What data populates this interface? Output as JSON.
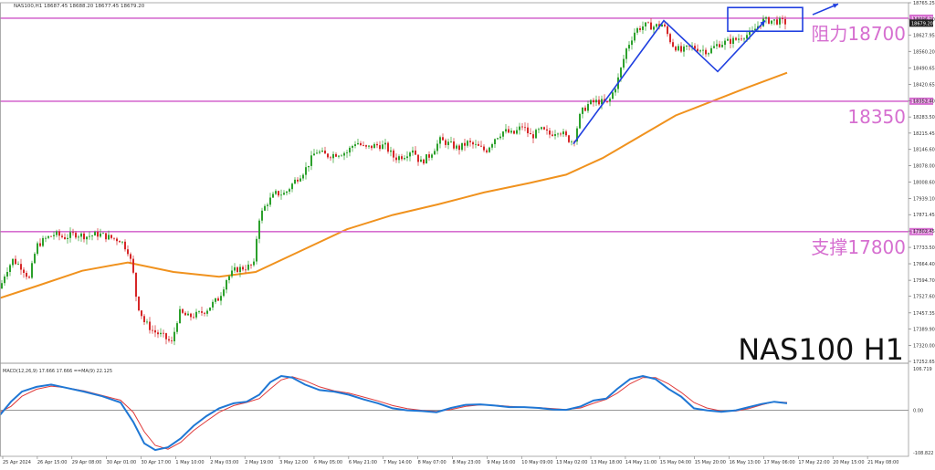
{
  "chart_data": {
    "type": "candlestick",
    "symbol_info": "NAS100,H1  18687.45 18688.20 18677.45 18679.20",
    "big_title": "NAS100 H1",
    "colors": {
      "bull": "#2ca02c",
      "bear": "#d62728",
      "ma": "#f0921e",
      "level": "#d66fd0",
      "trend": "#1f3fe0",
      "macd": "#1f77d4",
      "signal": "#e03a3a",
      "grid": "#d8d8d8",
      "text": "#333333"
    },
    "price_axis": {
      "min": 17252.65,
      "max": 18765.25,
      "ticks": [
        "18765.25",
        "18696.20",
        "18627.95",
        "18560.20",
        "18490.65",
        "18420.65",
        "18352.40",
        "18283.50",
        "18215.45",
        "18146.60",
        "18078.00",
        "18008.60",
        "17939.10",
        "17871.45",
        "17802.45",
        "17733.50",
        "17664.40",
        "17594.70",
        "17527.60",
        "17457.35",
        "17389.90",
        "17320.00",
        "17252.65"
      ],
      "current_price": "18679.20"
    },
    "levels": [
      {
        "price": 18700,
        "label": "阻力18700",
        "tag": "18700.00"
      },
      {
        "price": 18350,
        "label": "18350",
        "tag": "18350.00"
      },
      {
        "price": 17800,
        "label": "支撑17800",
        "tag": "17800.00"
      }
    ],
    "time_labels": [
      "25 Apr 2024",
      "26 Apr 15:00",
      "29 Apr 08:00",
      "30 Apr 01:00",
      "30 Apr 17:00",
      "1 May 10:00",
      "2 May 03:00",
      "2 May 19:00",
      "3 May 12:00",
      "6 May 05:00",
      "6 May 21:00",
      "7 May 14:00",
      "8 May 07:00",
      "8 May 23:00",
      "9 May 16:00",
      "10 May 09:00",
      "13 May 02:00",
      "13 May 18:00",
      "14 May 11:00",
      "15 May 04:00",
      "15 May 20:00",
      "16 May 13:00",
      "17 May 06:00",
      "17 May 22:00",
      "20 May 15:00",
      "21 May 08:00"
    ],
    "price_path": [
      [
        0,
        17560
      ],
      [
        6,
        17630
      ],
      [
        14,
        17680
      ],
      [
        24,
        17650
      ],
      [
        32,
        17600
      ],
      [
        40,
        17740
      ],
      [
        50,
        17770
      ],
      [
        60,
        17790
      ],
      [
        70,
        17775
      ],
      [
        82,
        17790
      ],
      [
        95,
        17780
      ],
      [
        108,
        17790
      ],
      [
        120,
        17775
      ],
      [
        132,
        17765
      ],
      [
        140,
        17720
      ],
      [
        145,
        17650
      ],
      [
        150,
        17500
      ],
      [
        158,
        17420
      ],
      [
        168,
        17380
      ],
      [
        178,
        17360
      ],
      [
        188,
        17330
      ],
      [
        196,
        17460
      ],
      [
        206,
        17440
      ],
      [
        216,
        17450
      ],
      [
        226,
        17470
      ],
      [
        234,
        17500
      ],
      [
        240,
        17520
      ],
      [
        248,
        17600
      ],
      [
        258,
        17640
      ],
      [
        270,
        17650
      ],
      [
        278,
        17660
      ],
      [
        283,
        17850
      ],
      [
        292,
        17920
      ],
      [
        302,
        17960
      ],
      [
        312,
        17960
      ],
      [
        322,
        18010
      ],
      [
        334,
        18060
      ],
      [
        346,
        18140
      ],
      [
        358,
        18120
      ],
      [
        370,
        18130
      ],
      [
        380,
        18135
      ],
      [
        390,
        18180
      ],
      [
        400,
        18150
      ],
      [
        412,
        18165
      ],
      [
        422,
        18160
      ],
      [
        432,
        18110
      ],
      [
        442,
        18120
      ],
      [
        452,
        18150
      ],
      [
        460,
        18090
      ],
      [
        470,
        18120
      ],
      [
        482,
        18185
      ],
      [
        492,
        18170
      ],
      [
        502,
        18150
      ],
      [
        512,
        18175
      ],
      [
        522,
        18160
      ],
      [
        532,
        18140
      ],
      [
        542,
        18195
      ],
      [
        552,
        18225
      ],
      [
        562,
        18210
      ],
      [
        572,
        18245
      ],
      [
        582,
        18200
      ],
      [
        592,
        18230
      ],
      [
        602,
        18210
      ],
      [
        612,
        18230
      ],
      [
        622,
        18190
      ],
      [
        628,
        18180
      ],
      [
        636,
        18300
      ],
      [
        645,
        18340
      ],
      [
        655,
        18350
      ],
      [
        666,
        18340
      ],
      [
        676,
        18430
      ],
      [
        686,
        18570
      ],
      [
        696,
        18650
      ],
      [
        706,
        18670
      ],
      [
        716,
        18665
      ],
      [
        726,
        18675
      ],
      [
        736,
        18590
      ],
      [
        746,
        18560
      ],
      [
        756,
        18580
      ],
      [
        766,
        18570
      ],
      [
        776,
        18560
      ],
      [
        786,
        18590
      ],
      [
        796,
        18600
      ],
      [
        806,
        18610
      ],
      [
        816,
        18630
      ],
      [
        822,
        18630
      ],
      [
        828,
        18660
      ],
      [
        836,
        18690
      ],
      [
        846,
        18690
      ],
      [
        856,
        18685
      ],
      [
        862,
        18680
      ]
    ],
    "moving_average": [
      [
        0,
        17520
      ],
      [
        40,
        17570
      ],
      [
        90,
        17635
      ],
      [
        140,
        17670
      ],
      [
        190,
        17630
      ],
      [
        240,
        17610
      ],
      [
        280,
        17630
      ],
      [
        330,
        17720
      ],
      [
        380,
        17810
      ],
      [
        430,
        17870
      ],
      [
        480,
        17915
      ],
      [
        530,
        17965
      ],
      [
        580,
        18005
      ],
      [
        620,
        18040
      ],
      [
        660,
        18110
      ],
      [
        700,
        18200
      ],
      [
        740,
        18290
      ],
      [
        780,
        18350
      ],
      [
        820,
        18410
      ],
      [
        862,
        18470
      ]
    ],
    "trend_lines": [
      [
        [
          628,
          18170
        ],
        [
          727,
          18690
        ],
        [
          786,
          18475
        ],
        [
          838,
          18690
        ]
      ]
    ],
    "box": {
      "x0": 797,
      "x1": 879,
      "p0": 18645,
      "p1": 18745
    },
    "arrow": {
      "x0": 890,
      "p0": 18715,
      "x1": 918,
      "p1": 18760
    },
    "macd": {
      "label": "MACD(12,26,9) 17.666 17.666   ==MA(9) 22.125",
      "min": -108.822,
      "max": 106.719,
      "ticks": [
        "106.719",
        "0.00",
        "-108.822"
      ],
      "main": [
        [
          0,
          -12
        ],
        [
          12,
          22
        ],
        [
          24,
          48
        ],
        [
          40,
          60
        ],
        [
          56,
          66
        ],
        [
          72,
          58
        ],
        [
          92,
          48
        ],
        [
          112,
          36
        ],
        [
          132,
          20
        ],
        [
          146,
          -30
        ],
        [
          158,
          -85
        ],
        [
          170,
          -102
        ],
        [
          184,
          -95
        ],
        [
          198,
          -72
        ],
        [
          212,
          -40
        ],
        [
          226,
          -15
        ],
        [
          240,
          5
        ],
        [
          256,
          18
        ],
        [
          270,
          22
        ],
        [
          284,
          40
        ],
        [
          296,
          72
        ],
        [
          308,
          88
        ],
        [
          320,
          84
        ],
        [
          334,
          66
        ],
        [
          350,
          52
        ],
        [
          366,
          48
        ],
        [
          382,
          40
        ],
        [
          398,
          28
        ],
        [
          414,
          18
        ],
        [
          430,
          5
        ],
        [
          446,
          0
        ],
        [
          462,
          -2
        ],
        [
          478,
          -5
        ],
        [
          494,
          6
        ],
        [
          510,
          14
        ],
        [
          526,
          15
        ],
        [
          542,
          12
        ],
        [
          558,
          8
        ],
        [
          574,
          8
        ],
        [
          590,
          6
        ],
        [
          606,
          2
        ],
        [
          620,
          1
        ],
        [
          636,
          10
        ],
        [
          650,
          25
        ],
        [
          664,
          30
        ],
        [
          676,
          55
        ],
        [
          690,
          80
        ],
        [
          704,
          88
        ],
        [
          718,
          80
        ],
        [
          732,
          55
        ],
        [
          746,
          35
        ],
        [
          760,
          5
        ],
        [
          774,
          0
        ],
        [
          790,
          -4
        ],
        [
          806,
          0
        ],
        [
          820,
          8
        ],
        [
          834,
          16
        ],
        [
          848,
          22
        ],
        [
          862,
          18
        ]
      ],
      "signal": [
        [
          0,
          -5
        ],
        [
          12,
          10
        ],
        [
          24,
          36
        ],
        [
          40,
          54
        ],
        [
          56,
          62
        ],
        [
          72,
          58
        ],
        [
          92,
          50
        ],
        [
          112,
          38
        ],
        [
          132,
          26
        ],
        [
          146,
          -5
        ],
        [
          158,
          -55
        ],
        [
          170,
          -90
        ],
        [
          184,
          -100
        ],
        [
          198,
          -82
        ],
        [
          212,
          -52
        ],
        [
          226,
          -28
        ],
        [
          240,
          -5
        ],
        [
          256,
          12
        ],
        [
          270,
          20
        ],
        [
          284,
          30
        ],
        [
          296,
          55
        ],
        [
          308,
          78
        ],
        [
          320,
          86
        ],
        [
          334,
          76
        ],
        [
          350,
          60
        ],
        [
          366,
          50
        ],
        [
          382,
          44
        ],
        [
          398,
          34
        ],
        [
          414,
          24
        ],
        [
          430,
          12
        ],
        [
          446,
          4
        ],
        [
          462,
          0
        ],
        [
          478,
          -3
        ],
        [
          494,
          2
        ],
        [
          510,
          10
        ],
        [
          526,
          14
        ],
        [
          542,
          13
        ],
        [
          558,
          10
        ],
        [
          574,
          8
        ],
        [
          590,
          7
        ],
        [
          606,
          4
        ],
        [
          620,
          2
        ],
        [
          636,
          6
        ],
        [
          650,
          18
        ],
        [
          664,
          28
        ],
        [
          676,
          44
        ],
        [
          690,
          68
        ],
        [
          704,
          84
        ],
        [
          718,
          84
        ],
        [
          732,
          68
        ],
        [
          746,
          46
        ],
        [
          760,
          20
        ],
        [
          774,
          6
        ],
        [
          790,
          -2
        ],
        [
          806,
          -2
        ],
        [
          820,
          4
        ],
        [
          834,
          14
        ],
        [
          848,
          22
        ],
        [
          862,
          20
        ]
      ]
    }
  }
}
